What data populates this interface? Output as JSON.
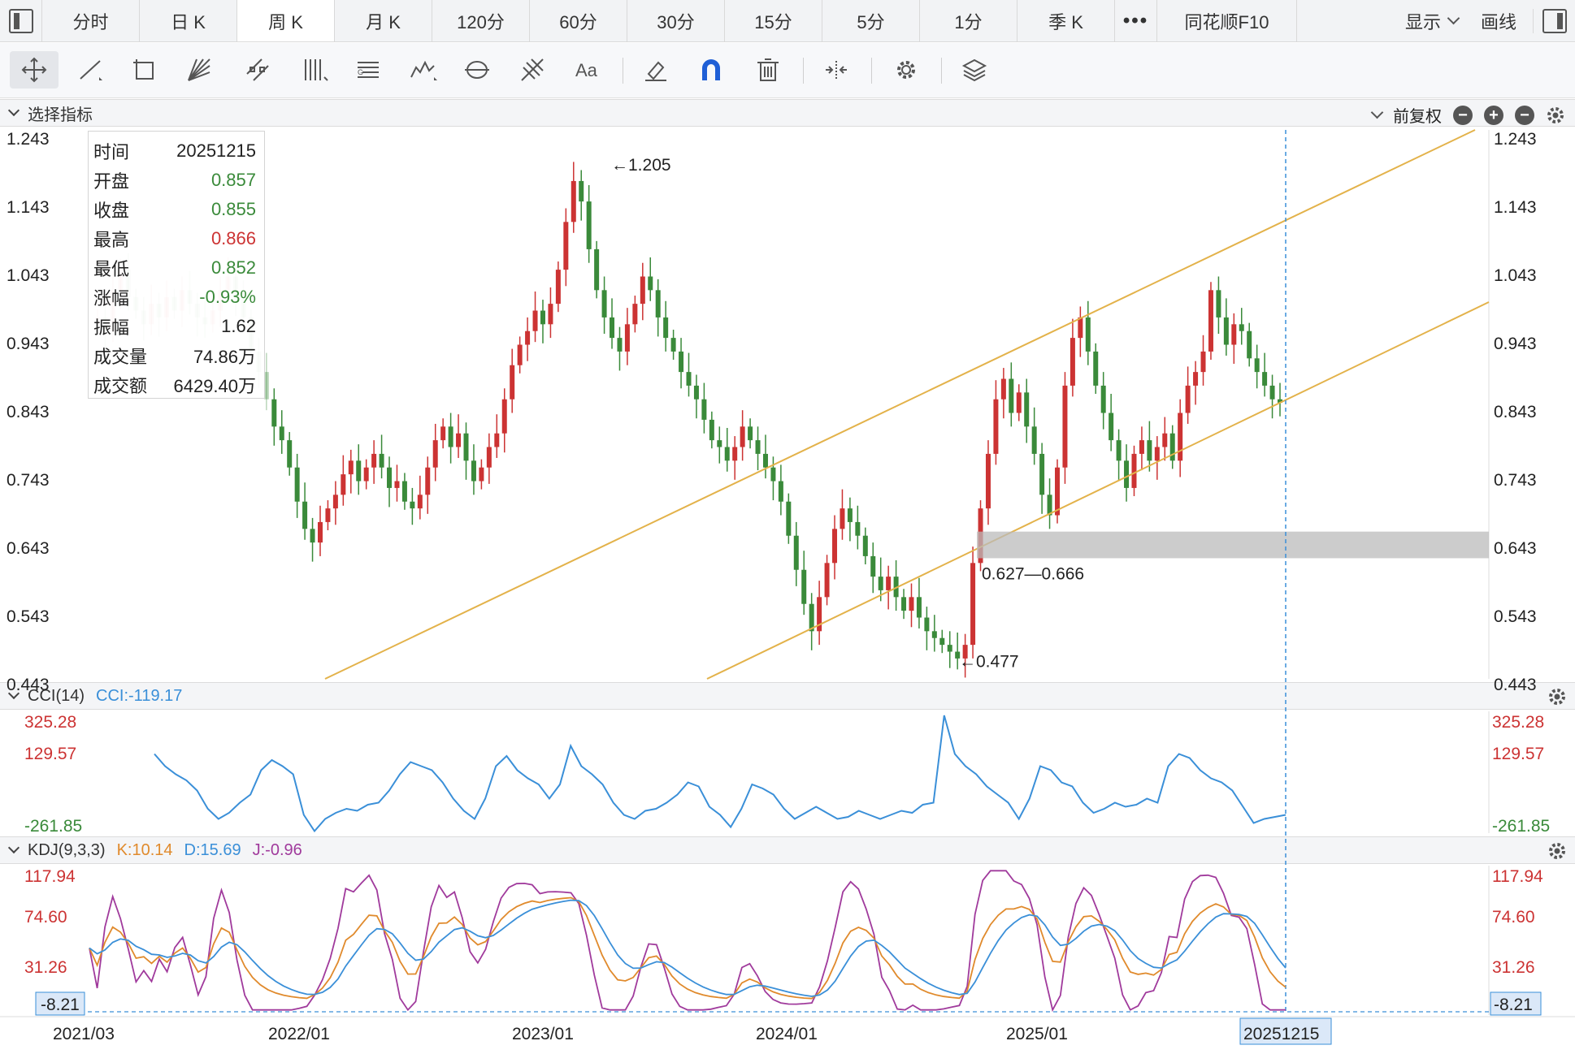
{
  "tabs": [
    {
      "label": "分时",
      "active": false
    },
    {
      "label": "日 K",
      "active": false
    },
    {
      "label": "周 K",
      "active": true
    },
    {
      "label": "月 K",
      "active": false
    },
    {
      "label": "120分",
      "active": false
    },
    {
      "label": "60分",
      "active": false
    },
    {
      "label": "30分",
      "active": false
    },
    {
      "label": "15分",
      "active": false
    },
    {
      "label": "5分",
      "active": false
    },
    {
      "label": "1分",
      "active": false
    },
    {
      "label": "季 K",
      "active": false
    }
  ],
  "more_label": "•••",
  "f10_label": "同花顺F10",
  "display_label": "显示",
  "draw_label": "画线",
  "tools": [
    "move-tool-icon",
    "line-tool-icon",
    "rect-tool-icon",
    "fan-tool-icon",
    "channel-tool-icon",
    "gann-tool-icon",
    "text-tool-icon",
    "wave-tool-icon",
    "cycle-tool-icon",
    "fib-tool-icon",
    "font-tool-icon",
    "eraser-icon",
    "magnet-icon",
    "trash-icon",
    "expand-icon",
    "settings-icon",
    "layers-icon"
  ],
  "main_panel": {
    "title": "选择指标",
    "adjust_label": "前复权"
  },
  "info": {
    "rows": [
      {
        "k": "时间",
        "v": "20251215",
        "c": ""
      },
      {
        "k": "开盘",
        "v": "0.857",
        "c": "g"
      },
      {
        "k": "收盘",
        "v": "0.855",
        "c": "g"
      },
      {
        "k": "最高",
        "v": "0.866",
        "c": "r"
      },
      {
        "k": "最低",
        "v": "0.852",
        "c": "g"
      },
      {
        "k": "涨幅",
        "v": "-0.93%",
        "c": "g"
      },
      {
        "k": "振幅",
        "v": "1.62",
        "c": ""
      },
      {
        "k": "成交量",
        "v": "74.86万",
        "c": ""
      },
      {
        "k": "成交额",
        "v": "6429.40万",
        "c": ""
      }
    ]
  },
  "cci_panel": {
    "title": "CCI(14)",
    "value": "CCI:-119.17",
    "color": "#3a8fd8"
  },
  "kdj_panel": {
    "title": "KDJ(9,3,3)",
    "k": "K:10.14",
    "d": "D:15.69",
    "j": "J:-0.96",
    "k_color": "#e08a2c",
    "d_color": "#3a8fd8",
    "j_color": "#a03a9c"
  },
  "colors": {
    "up": "#cc3333",
    "down": "#3a8a3a",
    "channel": "#e3b24a",
    "zone": "#bbbbbb",
    "crosshair": "#3a8fd8"
  },
  "chart_data": {
    "type": "candlestick",
    "price_axis_labels": [
      "1.243",
      "1.143",
      "1.043",
      "0.943",
      "0.843",
      "0.743",
      "0.643",
      "0.543",
      "0.443"
    ],
    "price_range": [
      0.443,
      1.243
    ],
    "annotations": [
      {
        "text": "←1.205",
        "price": 1.205
      },
      {
        "text": "←0.477",
        "price": 0.477
      },
      {
        "text": "0.627—0.666",
        "range": [
          0.627,
          0.666
        ]
      }
    ],
    "date_labels": [
      "2021/03",
      "2022/01",
      "2023/01",
      "2024/01",
      "2025/01",
      "20251215"
    ],
    "cursor_date": "20251215",
    "weekly_closes_approx": [
      0.98,
      0.96,
      1.02,
      1.05,
      1.01,
      0.99,
      0.97,
      1.0,
      0.98,
      1.01,
      0.99,
      1.02,
      1.0,
      0.98,
      0.97,
      0.99,
      1.02,
      1.04,
      1.01,
      0.98,
      0.93,
      0.9,
      0.86,
      0.82,
      0.8,
      0.76,
      0.71,
      0.67,
      0.65,
      0.68,
      0.7,
      0.72,
      0.75,
      0.77,
      0.74,
      0.76,
      0.78,
      0.76,
      0.73,
      0.74,
      0.71,
      0.7,
      0.72,
      0.76,
      0.8,
      0.82,
      0.79,
      0.81,
      0.77,
      0.74,
      0.76,
      0.79,
      0.81,
      0.86,
      0.91,
      0.94,
      0.96,
      0.99,
      0.97,
      1.0,
      1.05,
      1.12,
      1.18,
      1.15,
      1.08,
      1.02,
      0.98,
      0.95,
      0.93,
      0.97,
      1.0,
      1.04,
      1.02,
      0.98,
      0.95,
      0.93,
      0.9,
      0.88,
      0.86,
      0.83,
      0.8,
      0.79,
      0.77,
      0.79,
      0.82,
      0.8,
      0.78,
      0.76,
      0.74,
      0.71,
      0.66,
      0.61,
      0.56,
      0.52,
      0.57,
      0.62,
      0.67,
      0.7,
      0.68,
      0.66,
      0.63,
      0.6,
      0.58,
      0.6,
      0.57,
      0.55,
      0.57,
      0.54,
      0.52,
      0.51,
      0.5,
      0.49,
      0.48,
      0.5,
      0.62,
      0.7,
      0.78,
      0.86,
      0.89,
      0.84,
      0.87,
      0.82,
      0.78,
      0.72,
      0.69,
      0.76,
      0.88,
      0.95,
      0.98,
      0.93,
      0.88,
      0.84,
      0.8,
      0.77,
      0.73,
      0.78,
      0.8,
      0.77,
      0.79,
      0.81,
      0.77,
      0.84,
      0.88,
      0.9,
      0.93,
      1.02,
      0.98,
      0.94,
      0.97,
      0.96,
      0.92,
      0.9,
      0.88,
      0.86,
      0.855
    ]
  },
  "cci_axis_labels": [
    "325.28",
    "129.57",
    "-261.85"
  ],
  "cci_series_approx": [
    120,
    60,
    20,
    -10,
    -60,
    -150,
    -200,
    -170,
    -120,
    -80,
    40,
    90,
    60,
    20,
    -180,
    -260,
    -200,
    -170,
    -150,
    -160,
    -130,
    -120,
    -60,
    20,
    80,
    60,
    40,
    -20,
    -100,
    -160,
    -200,
    -100,
    60,
    110,
    40,
    0,
    -30,
    -100,
    -30,
    160,
    60,
    20,
    -30,
    -120,
    -180,
    -200,
    -160,
    -150,
    -120,
    -80,
    -20,
    -40,
    -140,
    -180,
    -240,
    -150,
    -30,
    -50,
    -80,
    -150,
    -200,
    -170,
    -140,
    -170,
    -200,
    -190,
    -160,
    -180,
    -200,
    -180,
    -160,
    -170,
    -130,
    -120,
    310,
    120,
    60,
    20,
    -40,
    -80,
    -120,
    -200,
    -100,
    60,
    40,
    -20,
    -40,
    -120,
    -170,
    -150,
    -120,
    -140,
    -130,
    -100,
    -120,
    60,
    120,
    100,
    40,
    0,
    -20,
    -60,
    -140,
    -220,
    -200,
    -190,
    -180
  ]
}
